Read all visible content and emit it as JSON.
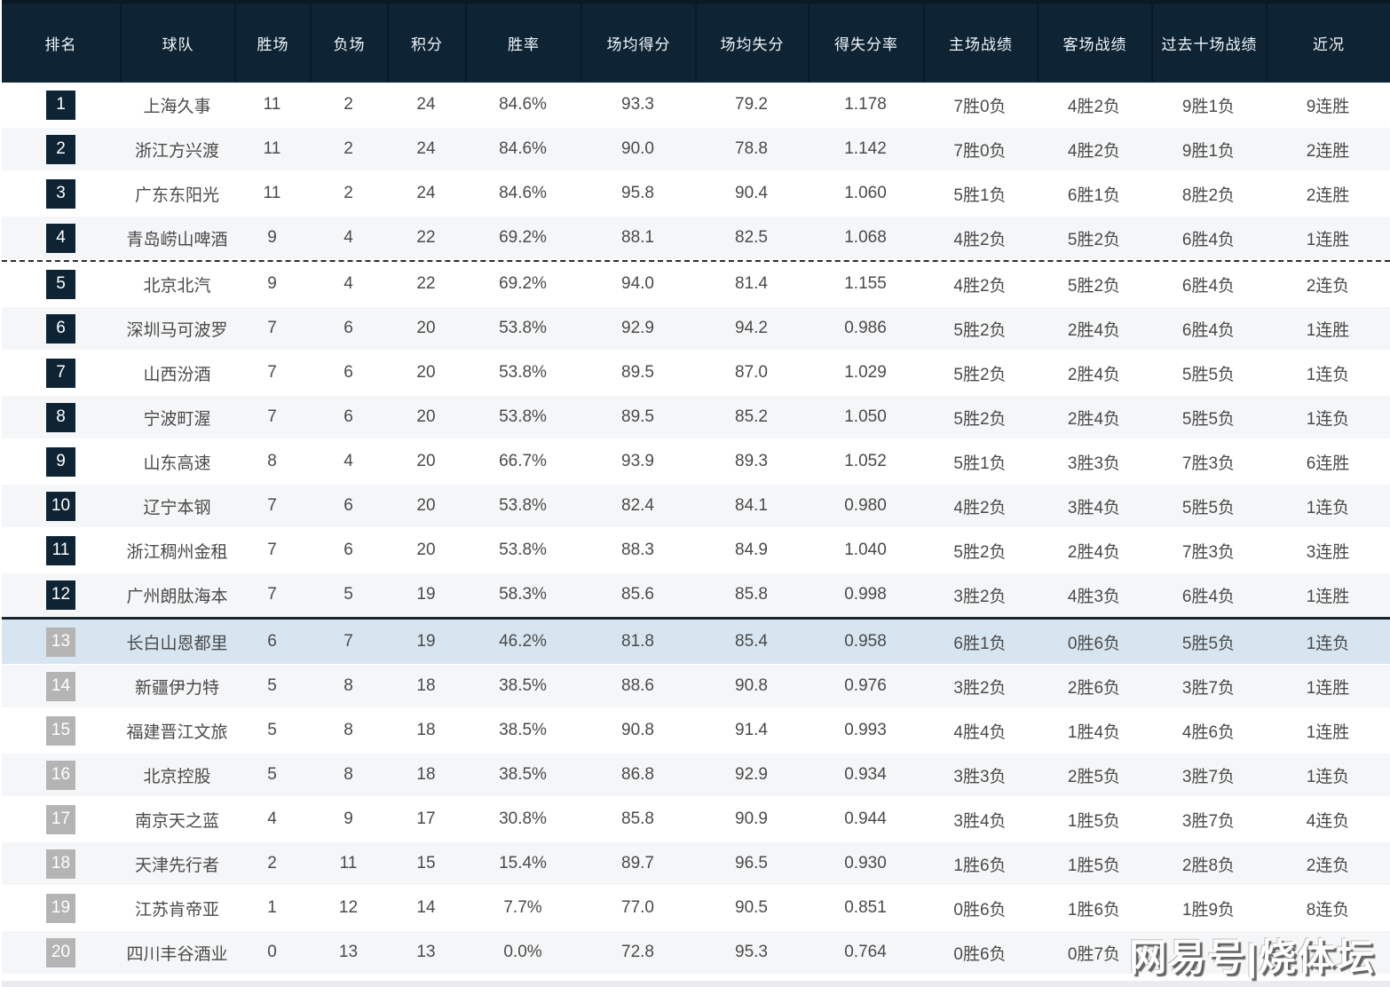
{
  "table": {
    "columns": [
      {
        "key": "rank",
        "label": "排名"
      },
      {
        "key": "team",
        "label": "球队"
      },
      {
        "key": "wins",
        "label": "胜场"
      },
      {
        "key": "losses",
        "label": "负场"
      },
      {
        "key": "points",
        "label": "积分"
      },
      {
        "key": "win_rate",
        "label": "胜率"
      },
      {
        "key": "avg_scored",
        "label": "场均得分"
      },
      {
        "key": "avg_allowed",
        "label": "场均失分"
      },
      {
        "key": "score_ratio",
        "label": "得失分率"
      },
      {
        "key": "home_record",
        "label": "主场战绩"
      },
      {
        "key": "away_record",
        "label": "客场战绩"
      },
      {
        "key": "last10",
        "label": "过去十场战绩"
      },
      {
        "key": "recent",
        "label": "近况"
      }
    ],
    "rows": [
      {
        "rank": "1",
        "team": "上海久事",
        "wins": "11",
        "losses": "2",
        "points": "24",
        "win_rate": "84.6%",
        "avg_scored": "93.3",
        "avg_allowed": "79.2",
        "score_ratio": "1.178",
        "home_record": "7胜0负",
        "away_record": "4胜2负",
        "last10": "9胜1负",
        "recent": "9连胜",
        "badge": "dark"
      },
      {
        "rank": "2",
        "team": "浙江方兴渡",
        "wins": "11",
        "losses": "2",
        "points": "24",
        "win_rate": "84.6%",
        "avg_scored": "90.0",
        "avg_allowed": "78.8",
        "score_ratio": "1.142",
        "home_record": "7胜0负",
        "away_record": "4胜2负",
        "last10": "9胜1负",
        "recent": "2连胜",
        "badge": "dark"
      },
      {
        "rank": "3",
        "team": "广东东阳光",
        "wins": "11",
        "losses": "2",
        "points": "24",
        "win_rate": "84.6%",
        "avg_scored": "95.8",
        "avg_allowed": "90.4",
        "score_ratio": "1.060",
        "home_record": "5胜1负",
        "away_record": "6胜1负",
        "last10": "8胜2负",
        "recent": "2连胜",
        "badge": "dark"
      },
      {
        "rank": "4",
        "team": "青岛崂山啤酒",
        "wins": "9",
        "losses": "4",
        "points": "22",
        "win_rate": "69.2%",
        "avg_scored": "88.1",
        "avg_allowed": "82.5",
        "score_ratio": "1.068",
        "home_record": "4胜2负",
        "away_record": "5胜2负",
        "last10": "6胜4负",
        "recent": "1连胜",
        "badge": "dark",
        "divider_after": "dashed"
      },
      {
        "rank": "5",
        "team": "北京北汽",
        "wins": "9",
        "losses": "4",
        "points": "22",
        "win_rate": "69.2%",
        "avg_scored": "94.0",
        "avg_allowed": "81.4",
        "score_ratio": "1.155",
        "home_record": "4胜2负",
        "away_record": "5胜2负",
        "last10": "6胜4负",
        "recent": "2连负",
        "badge": "dark"
      },
      {
        "rank": "6",
        "team": "深圳马可波罗",
        "wins": "7",
        "losses": "6",
        "points": "20",
        "win_rate": "53.8%",
        "avg_scored": "92.9",
        "avg_allowed": "94.2",
        "score_ratio": "0.986",
        "home_record": "5胜2负",
        "away_record": "2胜4负",
        "last10": "6胜4负",
        "recent": "1连胜",
        "badge": "dark"
      },
      {
        "rank": "7",
        "team": "山西汾酒",
        "wins": "7",
        "losses": "6",
        "points": "20",
        "win_rate": "53.8%",
        "avg_scored": "89.5",
        "avg_allowed": "87.0",
        "score_ratio": "1.029",
        "home_record": "5胜2负",
        "away_record": "2胜4负",
        "last10": "5胜5负",
        "recent": "1连负",
        "badge": "dark"
      },
      {
        "rank": "8",
        "team": "宁波町渥",
        "wins": "7",
        "losses": "6",
        "points": "20",
        "win_rate": "53.8%",
        "avg_scored": "89.5",
        "avg_allowed": "85.2",
        "score_ratio": "1.050",
        "home_record": "5胜2负",
        "away_record": "2胜4负",
        "last10": "5胜5负",
        "recent": "1连负",
        "badge": "dark"
      },
      {
        "rank": "9",
        "team": "山东高速",
        "wins": "8",
        "losses": "4",
        "points": "20",
        "win_rate": "66.7%",
        "avg_scored": "93.9",
        "avg_allowed": "89.3",
        "score_ratio": "1.052",
        "home_record": "5胜1负",
        "away_record": "3胜3负",
        "last10": "7胜3负",
        "recent": "6连胜",
        "badge": "dark"
      },
      {
        "rank": "10",
        "team": "辽宁本钢",
        "wins": "7",
        "losses": "6",
        "points": "20",
        "win_rate": "53.8%",
        "avg_scored": "82.4",
        "avg_allowed": "84.1",
        "score_ratio": "0.980",
        "home_record": "4胜2负",
        "away_record": "3胜4负",
        "last10": "5胜5负",
        "recent": "1连负",
        "badge": "dark"
      },
      {
        "rank": "11",
        "team": "浙江稠州金租",
        "wins": "7",
        "losses": "6",
        "points": "20",
        "win_rate": "53.8%",
        "avg_scored": "88.3",
        "avg_allowed": "84.9",
        "score_ratio": "1.040",
        "home_record": "5胜2负",
        "away_record": "2胜4负",
        "last10": "7胜3负",
        "recent": "3连胜",
        "badge": "dark"
      },
      {
        "rank": "12",
        "team": "广州朗肽海本",
        "wins": "7",
        "losses": "5",
        "points": "19",
        "win_rate": "58.3%",
        "avg_scored": "85.6",
        "avg_allowed": "85.8",
        "score_ratio": "0.998",
        "home_record": "3胜2负",
        "away_record": "4胜3负",
        "last10": "6胜4负",
        "recent": "1连胜",
        "badge": "dark",
        "divider_after": "solid"
      },
      {
        "rank": "13",
        "team": "长白山恩都里",
        "wins": "6",
        "losses": "7",
        "points": "19",
        "win_rate": "46.2%",
        "avg_scored": "81.8",
        "avg_allowed": "85.4",
        "score_ratio": "0.958",
        "home_record": "6胜1负",
        "away_record": "0胜6负",
        "last10": "5胜5负",
        "recent": "1连负",
        "badge": "gray",
        "highlighted": true
      },
      {
        "rank": "14",
        "team": "新疆伊力特",
        "wins": "5",
        "losses": "8",
        "points": "18",
        "win_rate": "38.5%",
        "avg_scored": "88.6",
        "avg_allowed": "90.8",
        "score_ratio": "0.976",
        "home_record": "3胜2负",
        "away_record": "2胜6负",
        "last10": "3胜7负",
        "recent": "1连胜",
        "badge": "gray"
      },
      {
        "rank": "15",
        "team": "福建晋江文旅",
        "wins": "5",
        "losses": "8",
        "points": "18",
        "win_rate": "38.5%",
        "avg_scored": "90.8",
        "avg_allowed": "91.4",
        "score_ratio": "0.993",
        "home_record": "4胜4负",
        "away_record": "1胜4负",
        "last10": "4胜6负",
        "recent": "1连胜",
        "badge": "gray"
      },
      {
        "rank": "16",
        "team": "北京控股",
        "wins": "5",
        "losses": "8",
        "points": "18",
        "win_rate": "38.5%",
        "avg_scored": "86.8",
        "avg_allowed": "92.9",
        "score_ratio": "0.934",
        "home_record": "3胜3负",
        "away_record": "2胜5负",
        "last10": "3胜7负",
        "recent": "1连负",
        "badge": "gray"
      },
      {
        "rank": "17",
        "team": "南京天之蓝",
        "wins": "4",
        "losses": "9",
        "points": "17",
        "win_rate": "30.8%",
        "avg_scored": "85.8",
        "avg_allowed": "90.9",
        "score_ratio": "0.944",
        "home_record": "3胜4负",
        "away_record": "1胜5负",
        "last10": "3胜7负",
        "recent": "4连负",
        "badge": "gray"
      },
      {
        "rank": "18",
        "team": "天津先行者",
        "wins": "2",
        "losses": "11",
        "points": "15",
        "win_rate": "15.4%",
        "avg_scored": "89.7",
        "avg_allowed": "96.5",
        "score_ratio": "0.930",
        "home_record": "1胜6负",
        "away_record": "1胜5负",
        "last10": "2胜8负",
        "recent": "2连负",
        "badge": "gray"
      },
      {
        "rank": "19",
        "team": "江苏肯帝亚",
        "wins": "1",
        "losses": "12",
        "points": "14",
        "win_rate": "7.7%",
        "avg_scored": "77.0",
        "avg_allowed": "90.5",
        "score_ratio": "0.851",
        "home_record": "0胜6负",
        "away_record": "1胜6负",
        "last10": "1胜9负",
        "recent": "8连负",
        "badge": "gray"
      },
      {
        "rank": "20",
        "team": "四川丰谷酒业",
        "wins": "0",
        "losses": "13",
        "points": "13",
        "win_rate": "0.0%",
        "avg_scored": "72.8",
        "avg_allowed": "95.3",
        "score_ratio": "0.764",
        "home_record": "0胜6负",
        "away_record": "0胜7负",
        "last10": "",
        "recent": "",
        "badge": "gray"
      }
    ]
  },
  "watermark": "网易号|烧体坛",
  "colors": {
    "header_bg": "#0e2435",
    "badge_dark": "#0e2435",
    "badge_gray": "#b4b4b4",
    "row_stripe": "#f5f6f7",
    "row_highlight": "#d7e5f0",
    "footer_bar": "#e9ebee"
  }
}
